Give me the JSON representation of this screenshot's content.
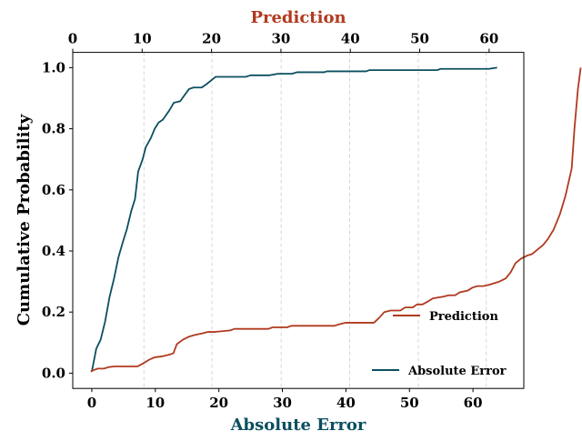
{
  "chart_data": {
    "type": "line",
    "xlabel": "Absolute Error",
    "ylabel": "Cumulative Probability",
    "top_xlabel": "Prediction",
    "colors": {
      "absolute_error": "#0b4f5f",
      "prediction": "#b03a1f"
    },
    "bottom_x": {
      "lim": [
        -3,
        68
      ],
      "ticks": [
        0,
        10,
        20,
        30,
        40,
        50,
        60
      ],
      "tick_labels": [
        "0",
        "10",
        "20",
        "30",
        "40",
        "50",
        "60"
      ]
    },
    "top_x": {
      "lim": [
        0,
        65
      ],
      "ticks": [
        0,
        10,
        20,
        30,
        40,
        50,
        60
      ],
      "tick_labels": [
        "0",
        "10",
        "20",
        "30",
        "40",
        "50",
        "60"
      ]
    },
    "y": {
      "lim": [
        -0.05,
        1.05
      ],
      "ticks": [
        0.0,
        0.2,
        0.4,
        0.6,
        0.8,
        1.0
      ],
      "tick_labels": [
        "0.0",
        "0.2",
        "0.4",
        "0.6",
        "0.8",
        "1.0"
      ]
    },
    "vertical_grid_lines_bottom_x": [
      8.2,
      18.9,
      29.8,
      40.6,
      51.4,
      62.1
    ],
    "series": [
      {
        "name": "Absolute Error",
        "axis": "bottom",
        "color_key": "absolute_error",
        "legend_position": "lower right",
        "points": [
          [
            0,
            0.005
          ],
          [
            0.7,
            0.08
          ],
          [
            1.4,
            0.11
          ],
          [
            2.1,
            0.17
          ],
          [
            2.8,
            0.25
          ],
          [
            3.5,
            0.31
          ],
          [
            4.2,
            0.38
          ],
          [
            4.9,
            0.43
          ],
          [
            5.5,
            0.47
          ],
          [
            6.2,
            0.53
          ],
          [
            6.8,
            0.57
          ],
          [
            7.3,
            0.66
          ],
          [
            8.0,
            0.7
          ],
          [
            8.5,
            0.74
          ],
          [
            9.3,
            0.77
          ],
          [
            9.9,
            0.8
          ],
          [
            10.5,
            0.82
          ],
          [
            11.2,
            0.83
          ],
          [
            12.2,
            0.86
          ],
          [
            12.9,
            0.885
          ],
          [
            13.9,
            0.89
          ],
          [
            14.6,
            0.91
          ],
          [
            15.3,
            0.93
          ],
          [
            16.0,
            0.935
          ],
          [
            17.3,
            0.935
          ],
          [
            18.0,
            0.945
          ],
          [
            18.9,
            0.96
          ],
          [
            19.5,
            0.97
          ],
          [
            21.0,
            0.97
          ],
          [
            23.0,
            0.97
          ],
          [
            24.2,
            0.97
          ],
          [
            25.0,
            0.975
          ],
          [
            28.0,
            0.975
          ],
          [
            29.3,
            0.98
          ],
          [
            31.5,
            0.98
          ],
          [
            32.3,
            0.985
          ],
          [
            36.6,
            0.985
          ],
          [
            37.0,
            0.988
          ],
          [
            43.2,
            0.988
          ],
          [
            43.7,
            0.992
          ],
          [
            54.4,
            0.992
          ],
          [
            54.9,
            0.996
          ],
          [
            62.5,
            0.996
          ],
          [
            63.8,
            1.0
          ]
        ]
      },
      {
        "name": "Prediction",
        "axis": "top",
        "color_key": "prediction",
        "legend_position": "center right",
        "points": [
          [
            2.6,
            0.005
          ],
          [
            3.0,
            0.01
          ],
          [
            3.6,
            0.015
          ],
          [
            4.5,
            0.015
          ],
          [
            5.2,
            0.02
          ],
          [
            6.0,
            0.022
          ],
          [
            8.4,
            0.022
          ],
          [
            9.3,
            0.022
          ],
          [
            10.0,
            0.03
          ],
          [
            11.1,
            0.045
          ],
          [
            11.8,
            0.052
          ],
          [
            12.9,
            0.055
          ],
          [
            13.8,
            0.06
          ],
          [
            14.5,
            0.065
          ],
          [
            15.0,
            0.095
          ],
          [
            15.9,
            0.11
          ],
          [
            16.8,
            0.12
          ],
          [
            17.6,
            0.125
          ],
          [
            18.6,
            0.13
          ],
          [
            19.5,
            0.135
          ],
          [
            20.5,
            0.135
          ],
          [
            22.7,
            0.14
          ],
          [
            23.3,
            0.145
          ],
          [
            28.2,
            0.145
          ],
          [
            28.8,
            0.15
          ],
          [
            30.9,
            0.15
          ],
          [
            31.5,
            0.155
          ],
          [
            37.7,
            0.155
          ],
          [
            38.4,
            0.16
          ],
          [
            39.3,
            0.165
          ],
          [
            43.4,
            0.165
          ],
          [
            44.1,
            0.18
          ],
          [
            44.9,
            0.2
          ],
          [
            45.8,
            0.205
          ],
          [
            47.2,
            0.205
          ],
          [
            47.9,
            0.215
          ],
          [
            49.0,
            0.215
          ],
          [
            49.6,
            0.225
          ],
          [
            50.4,
            0.225
          ],
          [
            51.2,
            0.235
          ],
          [
            51.9,
            0.245
          ],
          [
            53.3,
            0.25
          ],
          [
            54.2,
            0.255
          ],
          [
            55.1,
            0.255
          ],
          [
            55.8,
            0.265
          ],
          [
            56.9,
            0.27
          ],
          [
            57.6,
            0.28
          ],
          [
            58.3,
            0.285
          ],
          [
            59.2,
            0.285
          ],
          [
            60.1,
            0.29
          ],
          [
            61.5,
            0.3
          ],
          [
            62.4,
            0.31
          ],
          [
            63.1,
            0.33
          ],
          [
            63.8,
            0.36
          ],
          [
            64.6,
            0.375
          ],
          [
            65.5,
            0.385
          ],
          [
            66.2,
            0.39
          ],
          [
            67.0,
            0.405
          ],
          [
            67.8,
            0.42
          ],
          [
            68.5,
            0.44
          ],
          [
            69.3,
            0.47
          ],
          [
            70.2,
            0.52
          ],
          [
            71.0,
            0.58
          ],
          [
            71.9,
            0.67
          ],
          [
            72.3,
            0.8
          ],
          [
            72.8,
            0.93
          ],
          [
            73.2,
            1.0
          ]
        ]
      }
    ]
  }
}
